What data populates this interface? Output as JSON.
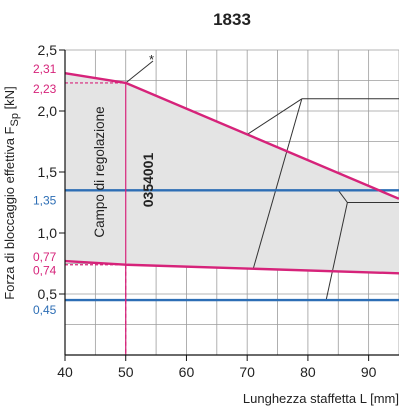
{
  "chart_data": {
    "type": "area",
    "title": "1833",
    "xlabel": "Lunghezza staffetta L [mm]",
    "ylabel_main": "Forza di bloccaggio effettiva F",
    "ylabel_sub": "Sp",
    "ylabel_unit": " [kN]",
    "xlim": [
      40,
      95
    ],
    "ylim": [
      0,
      2.5
    ],
    "x_ticks": [
      "40",
      "50",
      "60",
      "70",
      "80",
      "90"
    ],
    "y_ticks": [
      "0,5",
      "1,0",
      "1,5",
      "2,0",
      "2,5"
    ],
    "grid": true,
    "series": [
      {
        "role": "upper-limit",
        "color": "#d6237a",
        "points": [
          [
            40,
            2.31
          ],
          [
            50,
            2.23
          ],
          [
            95,
            1.28
          ]
        ]
      },
      {
        "role": "lower-limit",
        "color": "#d6237a",
        "points": [
          [
            40,
            0.77
          ],
          [
            50,
            0.74
          ],
          [
            95,
            0.67
          ]
        ]
      }
    ],
    "fill_color": "#e4e4e4",
    "hlines": [
      {
        "y": 1.35,
        "color": "#2d6eb5"
      },
      {
        "y": 0.45,
        "color": "#2d6eb5"
      }
    ],
    "marker_line": {
      "x": 50,
      "color": "#d6237a"
    },
    "pink_labels": [
      "2,31",
      "2,23",
      "0,77",
      "0,74"
    ],
    "blue_labels": [
      "1,35",
      "0,45"
    ],
    "range_label": "Campo di regolazione",
    "part_number": "0354001",
    "asterisk": "*"
  }
}
